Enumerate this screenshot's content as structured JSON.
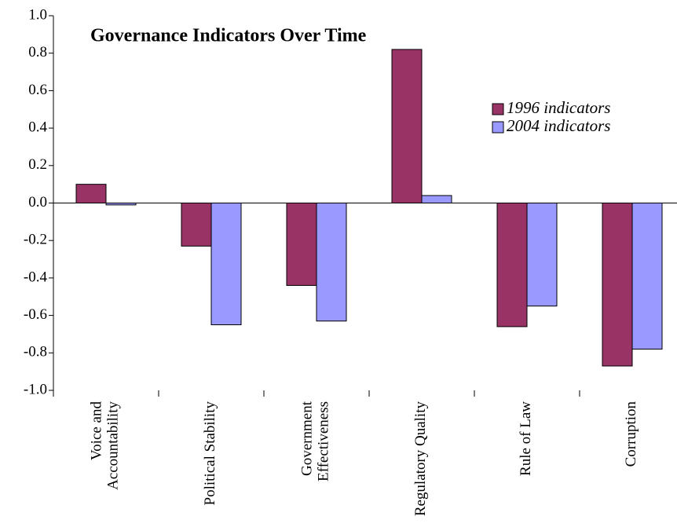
{
  "chart_data": {
    "type": "bar",
    "title": "Governance Indicators Over Time",
    "categories": [
      "Voice and Accountability",
      "Political Stability",
      "Government Effectiveness",
      "Regulatory Quality",
      "Rule of Law",
      "Corruption"
    ],
    "series": [
      {
        "name": "1996 indicators",
        "color": "#993366",
        "values": [
          0.1,
          -0.23,
          -0.44,
          0.82,
          -0.66,
          -0.87
        ]
      },
      {
        "name": "2004 indicators",
        "color": "#9999ff",
        "values": [
          -0.01,
          -0.65,
          -0.63,
          0.04,
          -0.55,
          -0.78
        ]
      }
    ],
    "ylim": [
      -1,
      1
    ],
    "yticks": [
      {
        "value": 1,
        "label": "1.0"
      },
      0.8,
      0.6,
      0.4,
      0.2,
      {
        "value": 0,
        "label": "0.0"
      },
      -0.2,
      -0.4,
      -0.6,
      -0.8,
      {
        "value": -1,
        "label": "-1.0"
      }
    ],
    "grid": false,
    "legend": "upper right"
  }
}
